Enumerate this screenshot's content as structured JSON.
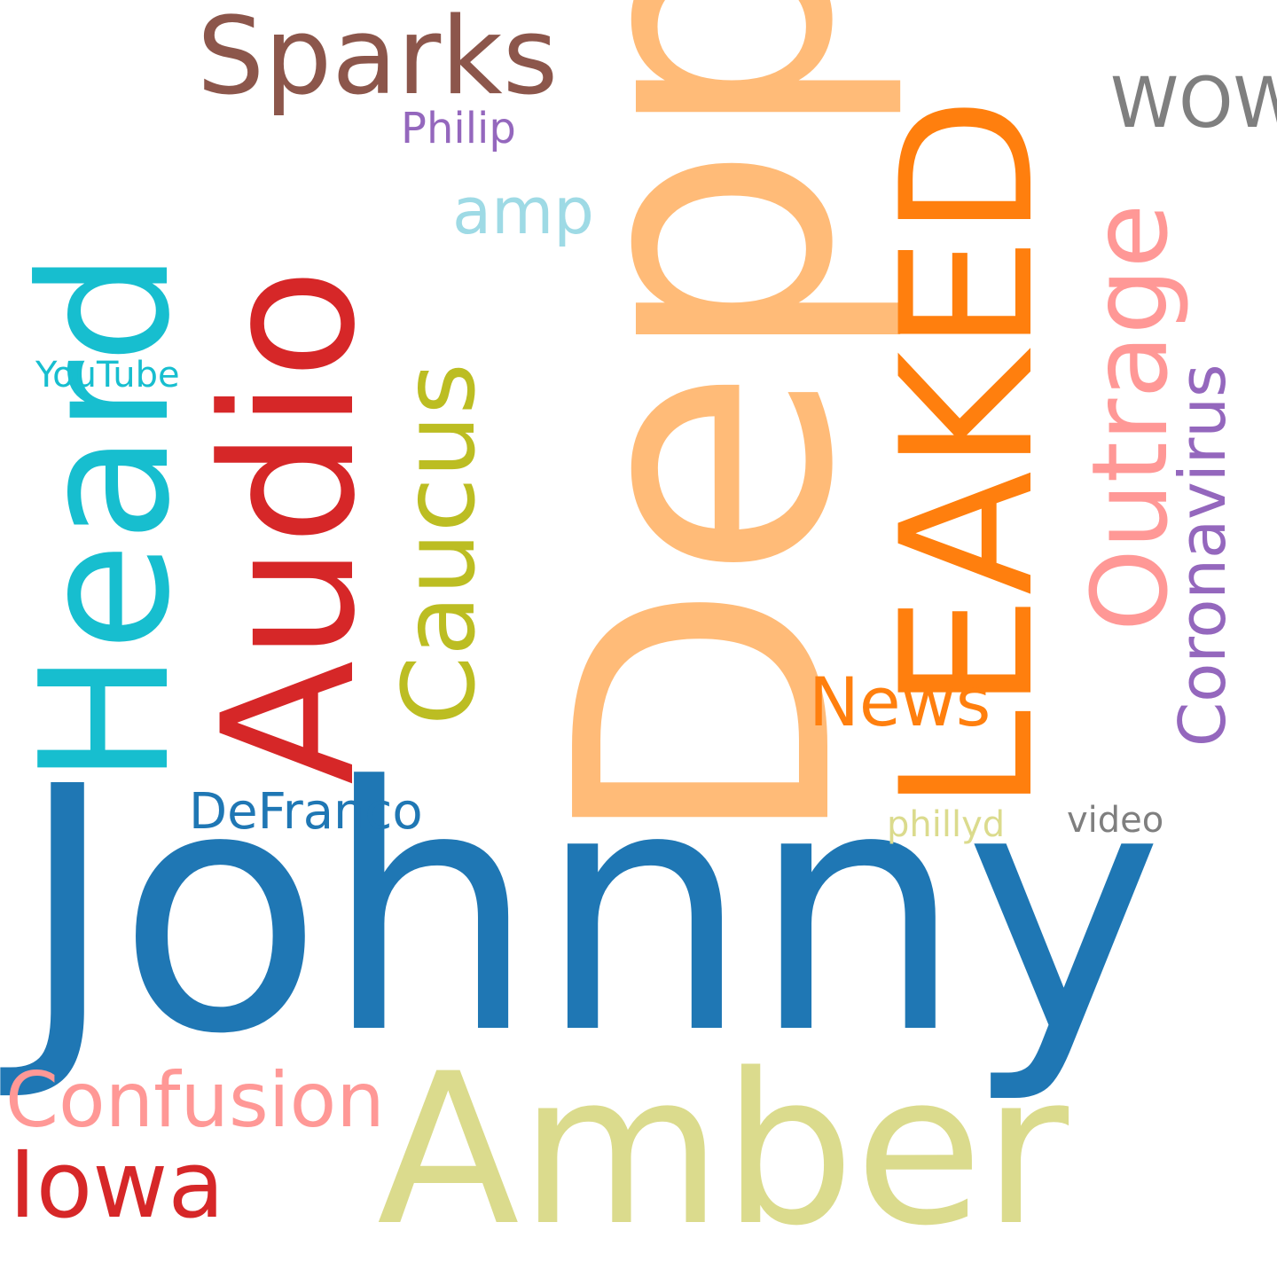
{
  "words": {
    "johnny": {
      "text": "Johnny",
      "color": "#1f77b4"
    },
    "depp": {
      "text": "Depp",
      "color": "#ffbb78"
    },
    "amber": {
      "text": "Amber",
      "color": "#dbdb8d"
    },
    "heard": {
      "text": "Heard",
      "color": "#17becf"
    },
    "audio": {
      "text": "Audio",
      "color": "#d62728"
    },
    "leaked": {
      "text": "LEAKED",
      "color": "#ff7f0e"
    },
    "sparks": {
      "text": "Sparks",
      "color": "#8c564b"
    },
    "caucus": {
      "text": "Caucus",
      "color": "#bcbd22"
    },
    "outrage": {
      "text": "Outrage",
      "color": "#ff9896"
    },
    "confusion": {
      "text": "Confusion",
      "color": "#ff9896"
    },
    "iowa": {
      "text": "Iowa",
      "color": "#d62728"
    },
    "coronavirus": {
      "text": "Coronavirus",
      "color": "#9467bd"
    },
    "news": {
      "text": "News",
      "color": "#ff7f0e"
    },
    "wow": {
      "text": "WOW",
      "color": "#7f7f7f"
    },
    "defranco": {
      "text": "DeFranco",
      "color": "#1f77b4"
    },
    "amp": {
      "text": "amp",
      "color": "#9edae5"
    },
    "philip": {
      "text": "Philip",
      "color": "#9467bd"
    },
    "youtube": {
      "text": "YouTube",
      "color": "#17becf"
    },
    "phillyd": {
      "text": "phillyd",
      "color": "#dbdb8d"
    },
    "video": {
      "text": "video",
      "color": "#7f7f7f"
    }
  }
}
